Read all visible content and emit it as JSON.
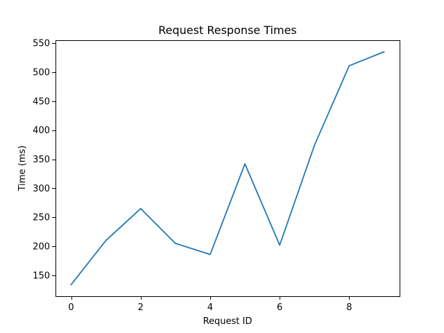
{
  "chart_data": {
    "type": "line",
    "title": "Request Response Times",
    "xlabel": "Request ID",
    "ylabel": "Time (ms)",
    "x": [
      0,
      1,
      2,
      3,
      4,
      5,
      6,
      7,
      8,
      9
    ],
    "series": [
      {
        "values": [
          134,
          210,
          265,
          205,
          186,
          342,
          202,
          374,
          511,
          535
        ],
        "color": "#1f77b4"
      }
    ],
    "xlim": [
      -0.45,
      9.45
    ],
    "ylim": [
      114,
      555
    ],
    "xticks": [
      0,
      2,
      4,
      6,
      8
    ],
    "yticks": [
      150,
      200,
      250,
      300,
      350,
      400,
      450,
      500,
      550
    ],
    "grid": false,
    "legend": false
  }
}
